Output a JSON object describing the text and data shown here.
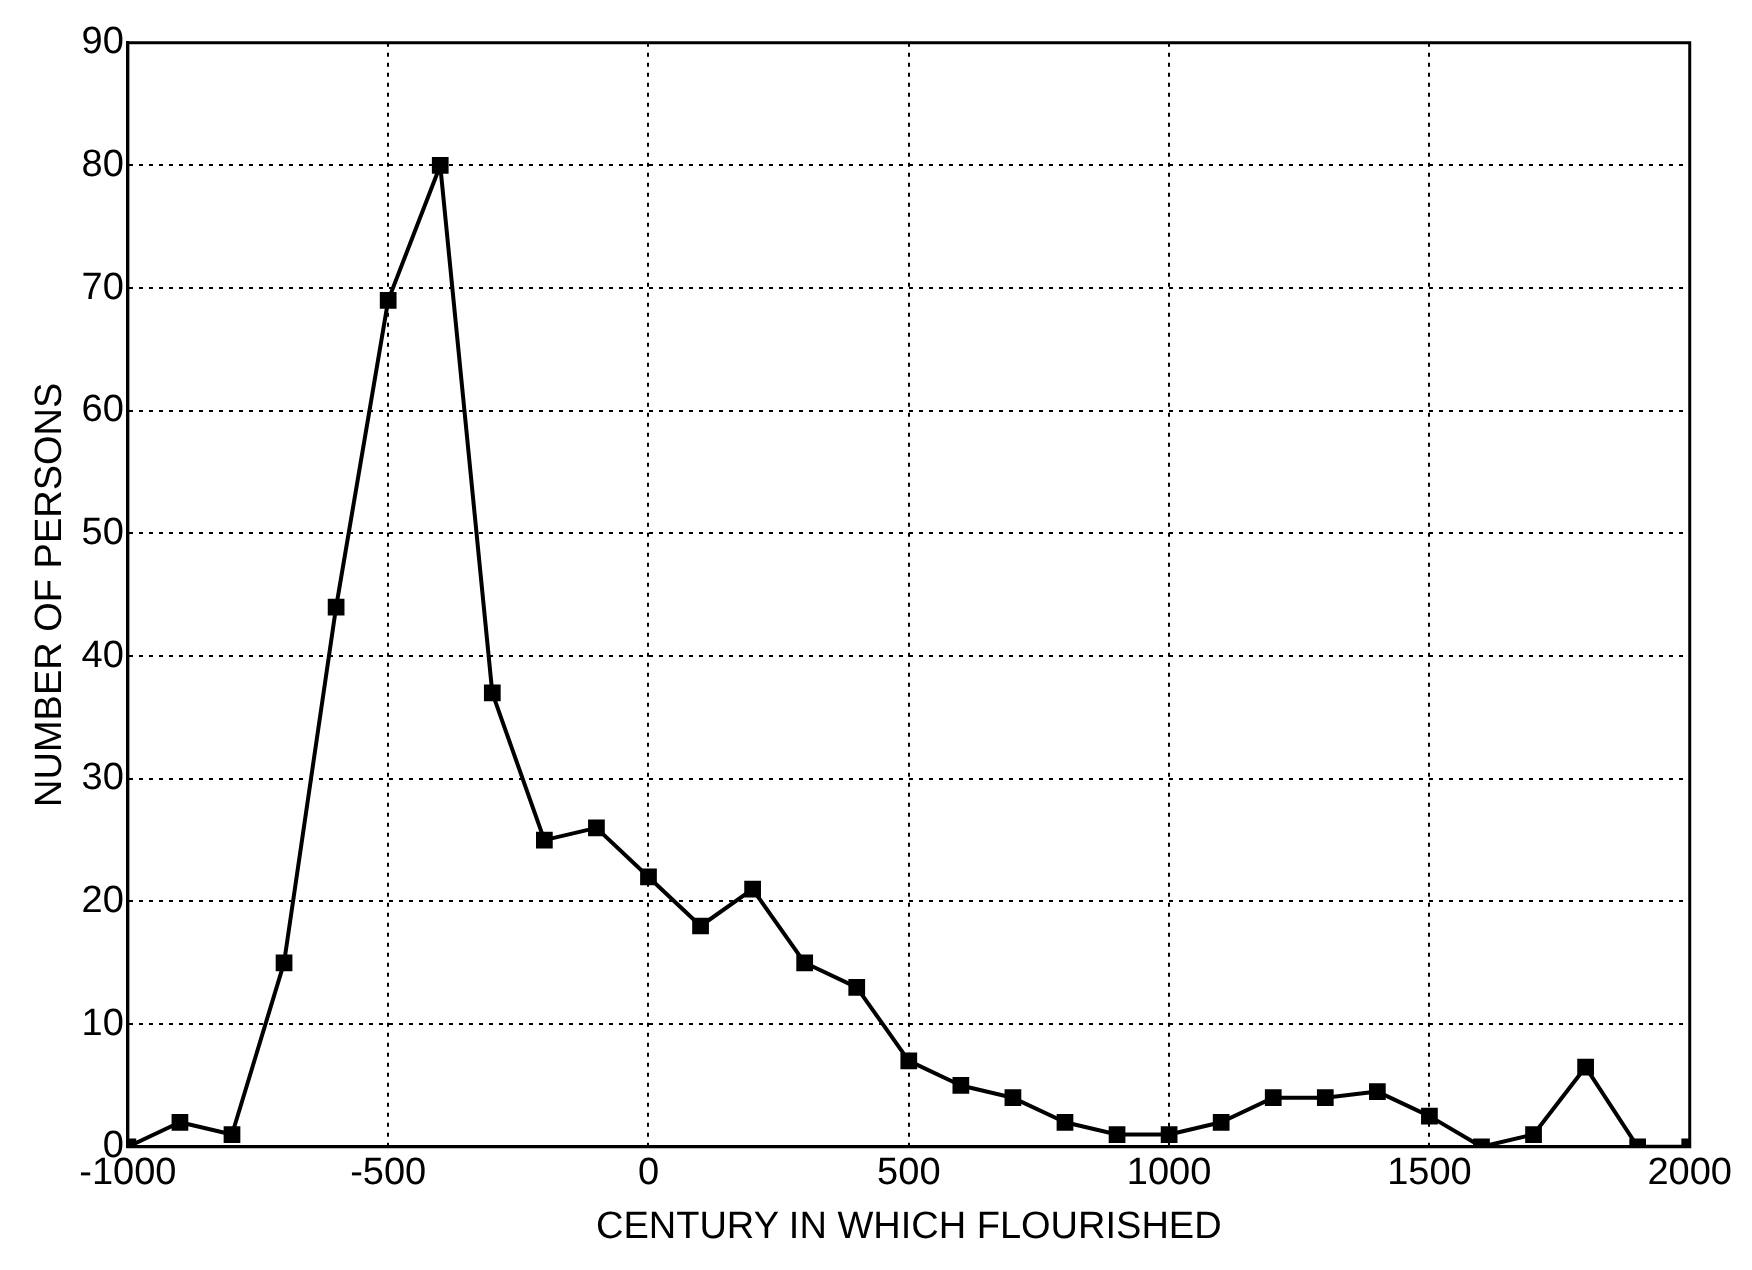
{
  "chart_data": {
    "type": "line",
    "xlabel": "CENTURY IN WHICH FLOURISHED",
    "ylabel": "NUMBER OF PERSONS",
    "x": [
      -1000,
      -900,
      -800,
      -700,
      -600,
      -500,
      -400,
      -300,
      -200,
      -100,
      0,
      100,
      200,
      300,
      400,
      500,
      600,
      700,
      800,
      900,
      1000,
      1100,
      1200,
      1300,
      1400,
      1500,
      1600,
      1700,
      1800,
      1900,
      2000
    ],
    "series": [
      {
        "color": "#000000",
        "values": [
          0,
          2,
          1,
          15,
          44,
          69,
          80,
          37,
          25,
          26,
          22,
          18,
          21,
          15,
          13,
          7,
          5,
          4,
          2,
          1,
          1,
          2,
          4,
          4,
          4.5,
          2.5,
          0,
          1,
          6.5,
          0,
          0
        ]
      }
    ],
    "xlim": [
      -1000,
      2000
    ],
    "xticks": [
      -1000,
      -500,
      0,
      500,
      1000,
      1500,
      2000
    ],
    "ylim": [
      0,
      90
    ],
    "yticks": [
      0,
      10,
      20,
      30,
      40,
      50,
      60,
      70,
      80,
      90
    ],
    "grid": true,
    "legend": false,
    "marker": "square",
    "line_style": "solid"
  }
}
